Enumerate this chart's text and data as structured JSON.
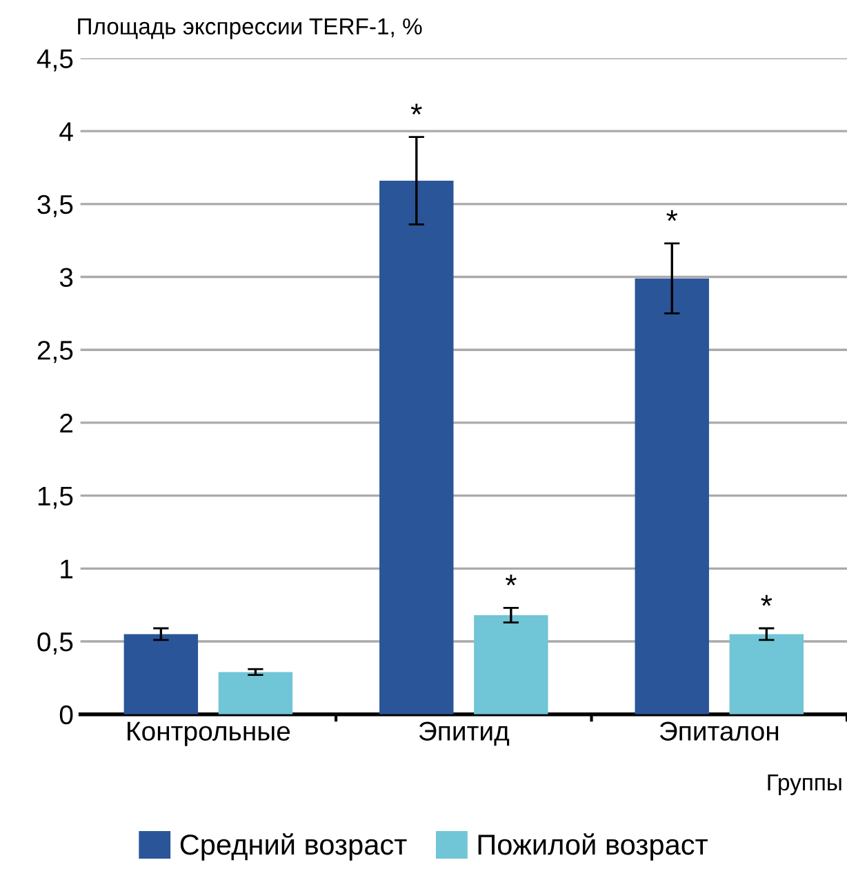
{
  "chart_data": {
    "type": "bar",
    "ylabel": "Площадь экспрессии TERF-1, %",
    "xlabel": "Группы",
    "categories": [
      "Контрольные",
      "Эпитид",
      "Эпиталон"
    ],
    "series": [
      {
        "name": "Средний возраст",
        "color": "#2a5599",
        "values": [
          0.55,
          3.66,
          2.99
        ],
        "errors": [
          0.04,
          0.3,
          0.24
        ],
        "value_labels": [
          null,
          "*",
          "*"
        ]
      },
      {
        "name": "Пожилой возраст",
        "color": "#70c5d6",
        "values": [
          0.29,
          0.68,
          0.55
        ],
        "errors": [
          0.02,
          0.05,
          0.04
        ],
        "value_labels": [
          null,
          "*",
          "*"
        ]
      }
    ],
    "ylim": [
      0,
      4.5
    ],
    "yticks": [
      0,
      {
        "value": 0.5,
        "label": "0,5"
      },
      1,
      {
        "value": 1.5,
        "label": "1,5"
      },
      2,
      {
        "value": 2.5,
        "label": "2,5"
      },
      3,
      {
        "value": 3.5,
        "label": "3,5"
      },
      4,
      {
        "value": 4.5,
        "label": "4,5"
      }
    ],
    "grid": "y",
    "legend": "bottom"
  }
}
